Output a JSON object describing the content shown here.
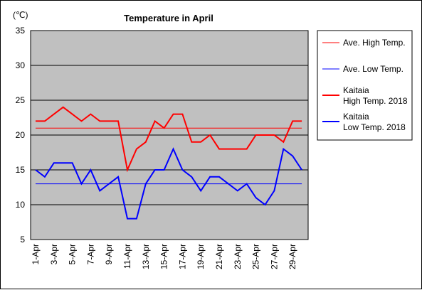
{
  "chart_data": {
    "type": "line",
    "title": "Temperature in April",
    "unit_label": "(℃)",
    "ylim": [
      5,
      35
    ],
    "yticks": [
      5,
      10,
      15,
      20,
      25,
      30,
      35
    ],
    "grid": "horizontal",
    "legend_position": "right",
    "days": 30,
    "xtick_labels": [
      "1-Apr",
      "3-Apr",
      "5-Apr",
      "7-Apr",
      "9-Apr",
      "11-Apr",
      "13-Apr",
      "15-Apr",
      "17-Apr",
      "19-Apr",
      "21-Apr",
      "23-Apr",
      "25-Apr",
      "27-Apr",
      "29-Apr"
    ],
    "series": [
      {
        "name": "Ave. High Temp.",
        "color": "#ff0000",
        "kind": "average",
        "values": [
          21,
          21,
          21,
          21,
          21,
          21,
          21,
          21,
          21,
          21,
          21,
          21,
          21,
          21,
          21,
          21,
          21,
          21,
          21,
          21,
          21,
          21,
          21,
          21,
          21,
          21,
          21,
          21,
          21,
          21
        ]
      },
      {
        "name": "Ave. Low Temp.",
        "color": "#0000ff",
        "kind": "average",
        "values": [
          13,
          13,
          13,
          13,
          13,
          13,
          13,
          13,
          13,
          13,
          13,
          13,
          13,
          13,
          13,
          13,
          13,
          13,
          13,
          13,
          13,
          13,
          13,
          13,
          13,
          13,
          13,
          13,
          13,
          13
        ]
      },
      {
        "name_lines": [
          "Kaitaia",
          "High Temp. 2018"
        ],
        "color": "#ff0000",
        "kind": "actual",
        "values": [
          22,
          22,
          23,
          24,
          23,
          22,
          23,
          22,
          22,
          22,
          15,
          18,
          19,
          22,
          21,
          23,
          23,
          19,
          19,
          20,
          18,
          18,
          18,
          18,
          20,
          20,
          20,
          19,
          22,
          22
        ]
      },
      {
        "name_lines": [
          "Kaitaia",
          "Low Temp. 2018"
        ],
        "color": "#0000ff",
        "kind": "actual",
        "values": [
          15,
          14,
          16,
          16,
          16,
          13,
          15,
          12,
          13,
          14,
          8,
          8,
          13,
          15,
          15,
          18,
          15,
          14,
          12,
          14,
          14,
          13,
          12,
          13,
          11,
          10,
          12,
          18,
          17,
          15
        ]
      }
    ]
  }
}
